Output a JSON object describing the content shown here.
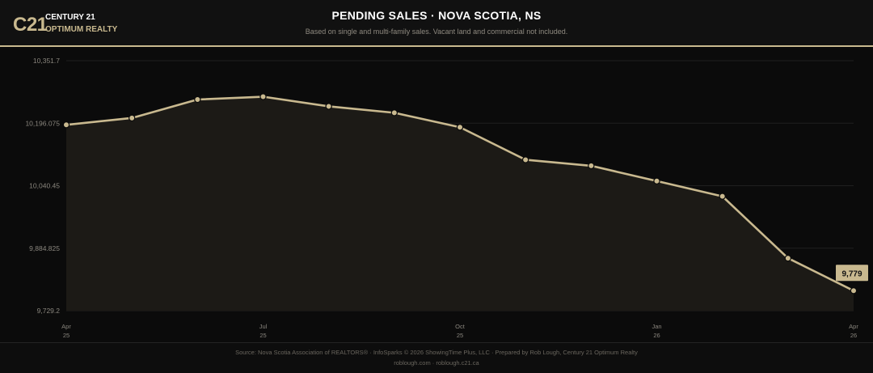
{
  "header": {
    "logo_mark": "C21",
    "logo_name": "CENTURY 21",
    "logo_sub": "OPTIMUM REALTY",
    "title": "PENDING SALES · NOVA SCOTIA, NS",
    "subtitle": "Based on single and multi-family sales. Vacant land and commercial not included."
  },
  "footer": {
    "source": "Source: Nova Scotia Association of REALTORS® · InfoSparks © 2026 ShowingTime Plus, LLC · Prepared by Rob Lough, Century 21 Optimum Realty",
    "links": "roblough.com · roblough.c21.ca"
  },
  "colors": {
    "line": "#c9b98f",
    "area": "#1c1a16",
    "background": "#0b0b0b",
    "callout": "#c9b98f"
  },
  "chart_data": {
    "type": "area",
    "x": [
      "Apr 25",
      "May 25",
      "Jun 25",
      "Jul 25",
      "Aug 25",
      "Sep 25",
      "Oct 25",
      "Nov 25",
      "Dec 25",
      "Jan 26",
      "Feb 26",
      "Mar 26",
      "Apr 26"
    ],
    "series": [
      {
        "values": [
          10192,
          10209,
          10255,
          10262,
          10238,
          10222,
          10186,
          10105,
          10090,
          10052,
          10014,
          9860,
          9779
        ]
      }
    ],
    "x_tick_labels": [
      {
        "index": 0,
        "month": "Apr",
        "year": "25"
      },
      {
        "index": 3,
        "month": "Jul",
        "year": "25"
      },
      {
        "index": 6,
        "month": "Oct",
        "year": "25"
      },
      {
        "index": 9,
        "month": "Jan",
        "year": "26"
      },
      {
        "index": 12,
        "month": "Apr",
        "year": "26"
      }
    ],
    "y_ticks": [
      "9,729.2",
      "9,884.825",
      "10,040.45",
      "10,196.075",
      "10,351.7"
    ],
    "ylim": [
      9729.2,
      10351.7
    ],
    "last_value_label": "9,779",
    "grid": true
  }
}
